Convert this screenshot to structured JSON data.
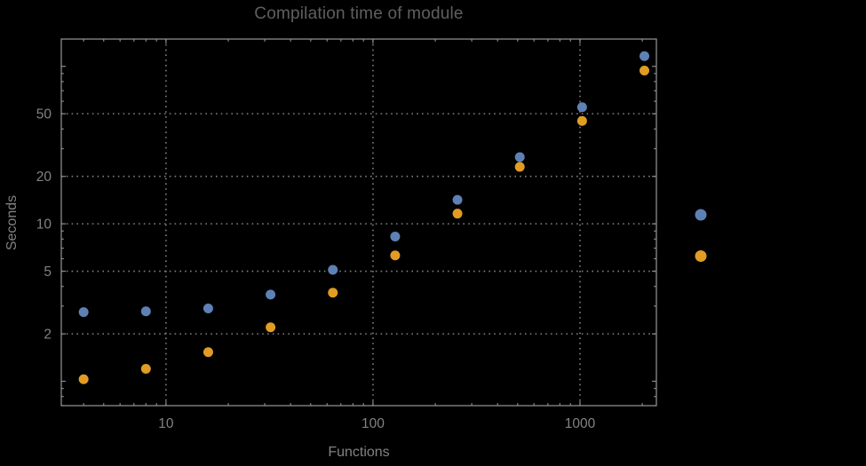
{
  "chart": {
    "title": "Compilation time of module",
    "xlabel": "Functions",
    "ylabel": "Seconds"
  },
  "chart_data": {
    "type": "scatter",
    "title": "Compilation time of module",
    "xlabel": "Functions",
    "ylabel": "Seconds",
    "x_scale": "log",
    "y_scale": "log",
    "xlim": [
      3.12,
      2340
    ],
    "ylim": [
      0.7,
      149
    ],
    "x_major_ticks": [
      10,
      100,
      1000
    ],
    "x_tick_labels": [
      "10",
      "100",
      "1000"
    ],
    "y_major_ticks": [
      2,
      5,
      10,
      20,
      50
    ],
    "y_tick_labels": [
      "2",
      "5",
      "10",
      "20",
      "50"
    ],
    "grid": "major-dotted",
    "x": [
      4,
      8,
      16,
      32,
      64,
      128,
      256,
      512,
      1024,
      2048
    ],
    "series": [
      {
        "name": "",
        "color": "#5e81b5",
        "values": [
          2.75,
          2.78,
          2.9,
          3.55,
          5.1,
          8.3,
          14.2,
          26.5,
          55,
          116
        ]
      },
      {
        "name": "",
        "color": "#e19c24",
        "values": [
          1.03,
          1.2,
          1.53,
          2.2,
          3.65,
          6.3,
          11.6,
          23,
          45,
          94
        ]
      }
    ],
    "legend": {
      "position": "right-outside",
      "items": [
        {
          "label": "",
          "color": "#5e81b5"
        },
        {
          "label": "",
          "color": "#e19c24"
        }
      ]
    },
    "colors": {
      "background": "#000000",
      "frame": "#8c8c8c",
      "grid": "#808080",
      "title": "#5f5f5f",
      "labels": "#828282"
    }
  }
}
